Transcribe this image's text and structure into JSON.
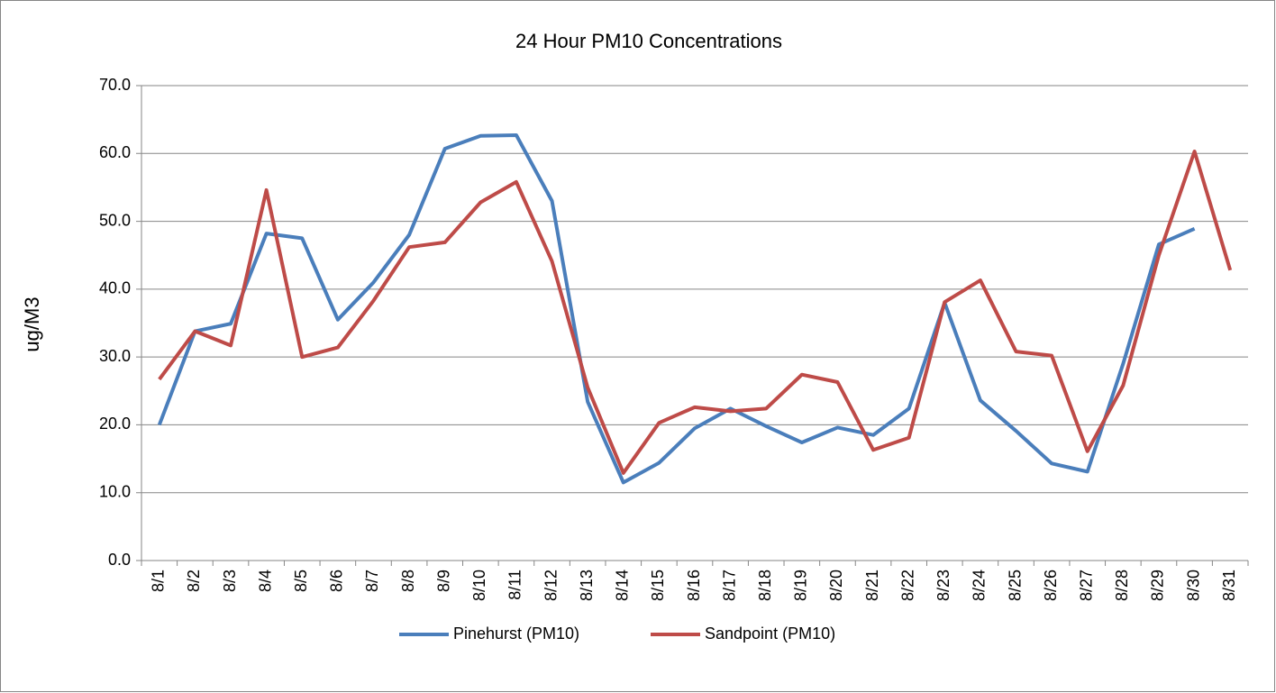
{
  "chart_data": {
    "type": "line",
    "title": "24 Hour PM10 Concentrations",
    "y_label": "ug/M3",
    "categories": [
      "8/1",
      "8/2",
      "8/3",
      "8/4",
      "8/5",
      "8/6",
      "8/7",
      "8/8",
      "8/9",
      "8/10",
      "8/11",
      "8/12",
      "8/13",
      "8/14",
      "8/15",
      "8/16",
      "8/17",
      "8/18",
      "8/19",
      "8/20",
      "8/21",
      "8/22",
      "8/23",
      "8/24",
      "8/25",
      "8/26",
      "8/27",
      "8/28",
      "8/29",
      "8/30",
      "8/31"
    ],
    "series": [
      {
        "name": "Pinehurst (PM10)",
        "color": "#4a7ebb",
        "values": [
          20.0,
          33.8,
          34.9,
          48.2,
          47.5,
          35.5,
          41.0,
          48.0,
          60.7,
          62.6,
          62.7,
          53.0,
          23.4,
          11.5,
          14.4,
          19.5,
          22.4,
          19.8,
          17.4,
          19.6,
          18.5,
          22.4,
          38.0,
          23.6,
          19.1,
          14.3,
          13.1,
          29.0,
          46.6,
          48.9,
          null
        ]
      },
      {
        "name": "Sandpoint (PM10)",
        "color": "#be4b48",
        "values": [
          26.7,
          33.8,
          31.7,
          54.6,
          30.0,
          31.4,
          38.3,
          46.2,
          46.9,
          52.8,
          55.8,
          44.1,
          25.5,
          12.9,
          20.3,
          22.6,
          22.0,
          22.4,
          27.4,
          26.3,
          16.3,
          18.1,
          38.1,
          41.3,
          30.8,
          30.2,
          16.1,
          25.8,
          45.0,
          60.3,
          42.8
        ]
      }
    ],
    "ylim": [
      0,
      70
    ],
    "yticks": [
      {
        "value": 0,
        "label": "0.0"
      },
      {
        "value": 10,
        "label": "10.0"
      },
      {
        "value": 20,
        "label": "20.0"
      },
      {
        "value": 30,
        "label": "30.0"
      },
      {
        "value": 40,
        "label": "40.0"
      },
      {
        "value": 50,
        "label": "50.0"
      },
      {
        "value": 60,
        "label": "60.0"
      },
      {
        "value": 70,
        "label": "70.0"
      }
    ],
    "grid": true,
    "legend": "bottom"
  }
}
